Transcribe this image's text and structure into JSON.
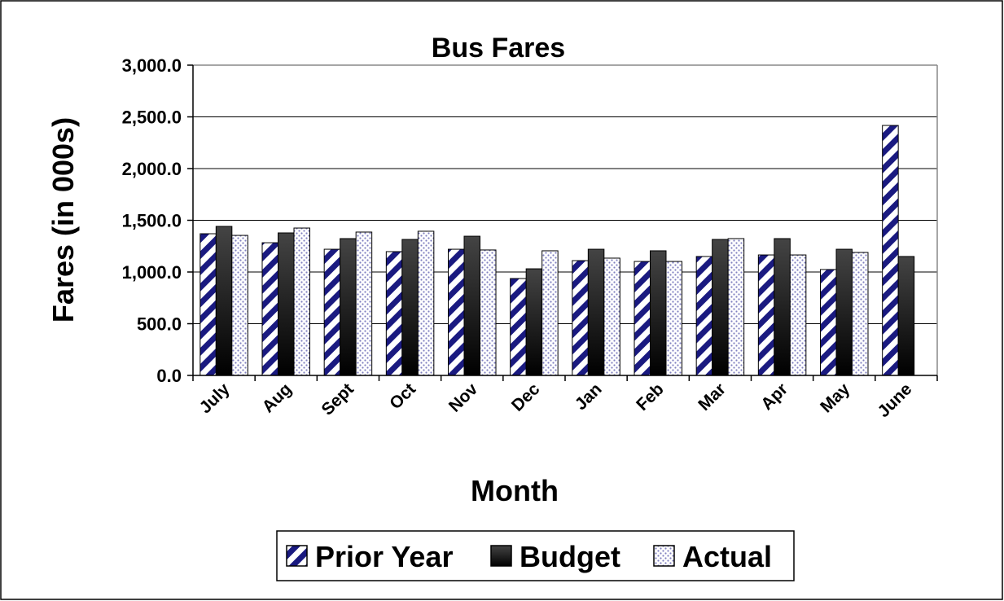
{
  "chart_data": {
    "type": "bar",
    "title": "Bus Fares",
    "x_label": "Month",
    "y_label": "Fares (in 000s)",
    "categories": [
      "July",
      "Aug",
      "Sept",
      "Oct",
      "Nov",
      "Dec",
      "Jan",
      "Feb",
      "Mar",
      "Apr",
      "May",
      "June"
    ],
    "series": [
      {
        "name": "Prior Year",
        "color": "#1a1a80",
        "pattern": "hatch",
        "values": [
          1370,
          1283,
          1220,
          1197,
          1220,
          937,
          1110,
          1102,
          1150,
          1165,
          1024,
          2417
        ]
      },
      {
        "name": "Budget",
        "color": "#000000",
        "pattern": "solid",
        "values": [
          1441,
          1378,
          1323,
          1315,
          1346,
          1031,
          1220,
          1205,
          1315,
          1323,
          1220,
          1150
        ]
      },
      {
        "name": "Actual",
        "color": "#8080c0",
        "pattern": "dots",
        "values": [
          1354,
          1425,
          1386,
          1394,
          1213,
          1205,
          1134,
          1102,
          1323,
          1165,
          1189,
          null
        ]
      }
    ],
    "ylim": [
      0,
      3000
    ],
    "yticks": [
      {
        "value": 0,
        "label": "0.0"
      },
      {
        "value": 500,
        "label": "500.0"
      },
      {
        "value": 1000,
        "label": "1,000.0"
      },
      {
        "value": 1500,
        "label": "1,500.0"
      },
      {
        "value": 2000,
        "label": "2,000.0"
      },
      {
        "value": 2500,
        "label": "2,500.0"
      },
      {
        "value": 3000,
        "label": "3,000.0"
      }
    ],
    "grid": true,
    "legend": "bottom"
  }
}
